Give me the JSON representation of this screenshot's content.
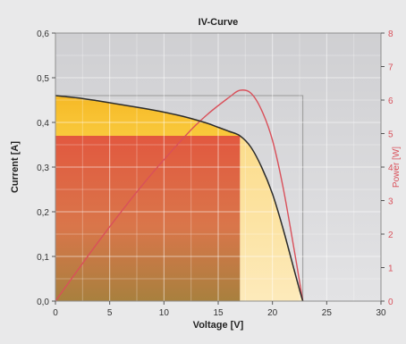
{
  "chart_data": {
    "type": "area",
    "title": "IV-Curve",
    "xlabel": "Voltage [V]",
    "ylabel": "Current [A]",
    "y2label": "Power [W]",
    "xlim": [
      0,
      30
    ],
    "ylim": [
      0,
      0.6
    ],
    "y2lim": [
      0,
      8
    ],
    "xticks": [
      "0",
      "5",
      "10",
      "15",
      "20",
      "25",
      "30"
    ],
    "yticks": [
      "0,0",
      "0,1",
      "0,2",
      "0,3",
      "0,4",
      "0,5",
      "0,6"
    ],
    "y2ticks": [
      "0",
      "1",
      "2",
      "3",
      "4",
      "5",
      "6",
      "7",
      "8"
    ],
    "grid": true,
    "parameters": {
      "isc": 0.46,
      "voc": 22.8,
      "vmpp": 17.0,
      "impp": 0.37,
      "pmax": 6.3
    },
    "series": [
      {
        "axis": "left",
        "color": "#2b2b2b",
        "x": [
          0,
          2,
          4,
          6,
          8,
          10,
          12,
          14,
          15,
          16,
          17,
          18,
          19,
          20,
          21,
          22,
          22.5,
          22.8
        ],
        "y": [
          0.46,
          0.455,
          0.448,
          0.44,
          0.432,
          0.423,
          0.412,
          0.398,
          0.389,
          0.38,
          0.37,
          0.345,
          0.3,
          0.24,
          0.16,
          0.07,
          0.025,
          0.0
        ]
      },
      {
        "axis": "right",
        "color": "#d9505a",
        "x": [
          0,
          4,
          8,
          12,
          14,
          16,
          17,
          18,
          19,
          20,
          21,
          22,
          22.8
        ],
        "y": [
          0,
          1.79,
          3.46,
          4.94,
          5.57,
          6.08,
          6.29,
          6.21,
          5.7,
          4.8,
          3.36,
          1.54,
          0
        ]
      }
    ],
    "colors": {
      "background": "#e9e9ea",
      "plot_bg": "#d6d6d8",
      "pmax_rect": "#e06a48",
      "under_curve": "#f7bf28",
      "right_band": "#fde3a4",
      "power_axis": "#d9505a"
    }
  }
}
